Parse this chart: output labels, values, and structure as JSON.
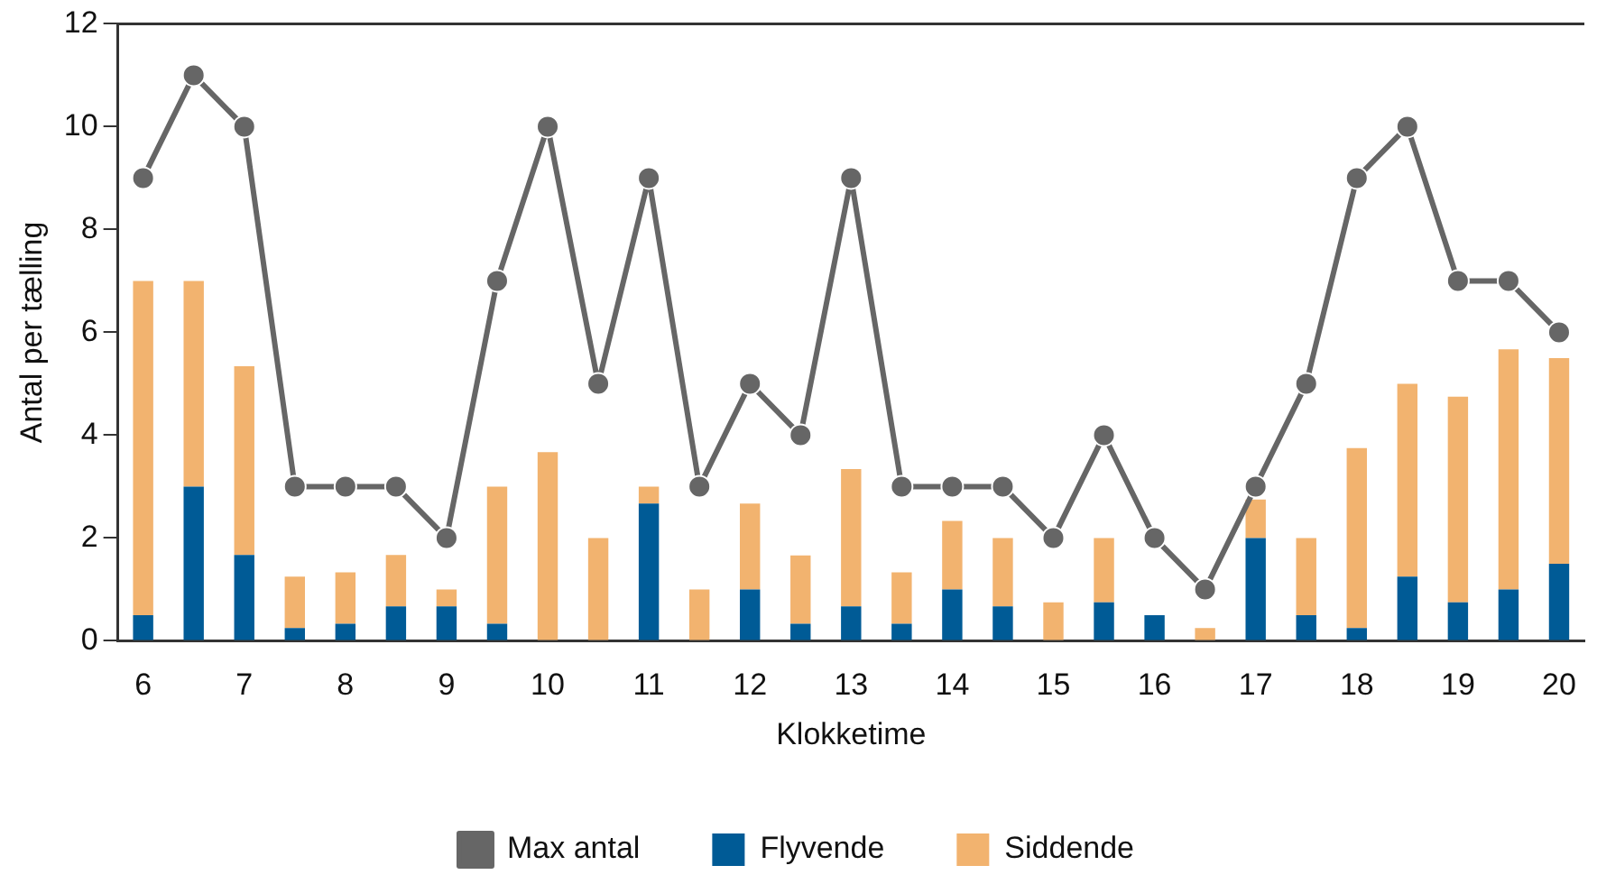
{
  "chart_data": {
    "type": "bar",
    "stacked": true,
    "xlabel": "Klokketime",
    "ylabel": "Antal per tælling",
    "categories": [
      "6",
      null,
      "7",
      null,
      "8",
      null,
      "9",
      null,
      "10",
      null,
      "11",
      null,
      "12",
      null,
      "13",
      null,
      "14",
      null,
      "15",
      null,
      "16",
      null,
      "17",
      null,
      "18",
      null,
      "19",
      null,
      "20"
    ],
    "series": [
      {
        "name": "Flyvende",
        "color": "#005b96",
        "values": [
          0.5,
          3,
          1.67,
          0.25,
          0.33,
          0.67,
          0.67,
          0.33,
          0,
          0,
          2.67,
          0,
          1,
          0.33,
          0.67,
          0.33,
          1,
          0.67,
          0,
          0.75,
          0.5,
          0,
          2,
          0.5,
          0.25,
          1.25,
          0.75,
          1,
          1.5
        ]
      },
      {
        "name": "Siddende",
        "color": "#f2b36f",
        "values": [
          6.5,
          4,
          3.67,
          1,
          1,
          1,
          0.33,
          2.67,
          3.67,
          2,
          0.33,
          1,
          1.67,
          1.33,
          2.67,
          1,
          1.33,
          1.33,
          0.75,
          1.25,
          0,
          0.25,
          0.75,
          1.5,
          3.5,
          3.75,
          4,
          4.67,
          4
        ]
      },
      {
        "name": "Max antal",
        "type": "line",
        "color": "#666666",
        "marker": "circle",
        "values": [
          9,
          11,
          10,
          3,
          3,
          3,
          2,
          7,
          10,
          5,
          9,
          3,
          5,
          4,
          9,
          3,
          3,
          3,
          2,
          4,
          2,
          1,
          3,
          5,
          9,
          10,
          7,
          7,
          6
        ]
      }
    ],
    "ylim": [
      0,
      12
    ],
    "yticks": [
      0,
      2,
      4,
      6,
      8,
      10,
      12
    ],
    "grid": false,
    "legend": "bottom"
  }
}
